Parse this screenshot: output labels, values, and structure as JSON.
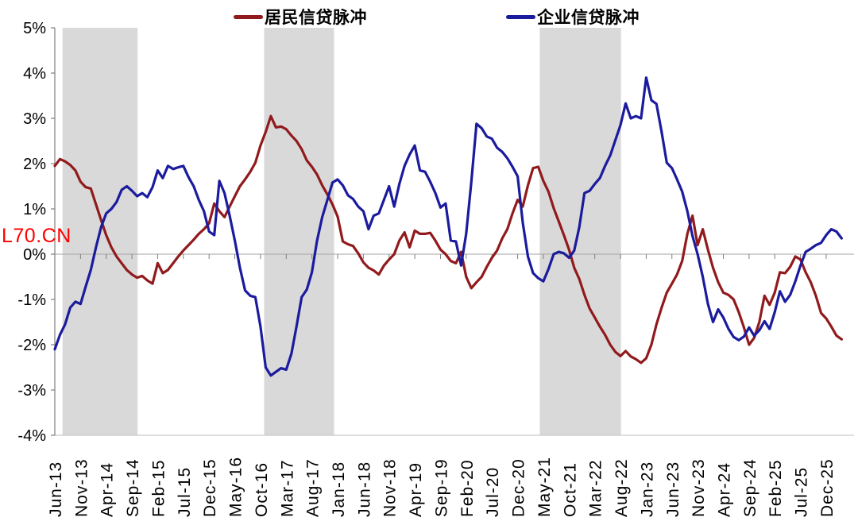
{
  "watermark": {
    "text": "L70.CN",
    "color": "#ff0000"
  },
  "legend": {
    "items": [
      {
        "label": "居民信贷脉冲",
        "color": "#911a1d"
      },
      {
        "label": "企业信贷脉冲",
        "color": "#1b1b9e"
      }
    ]
  },
  "chart_data": {
    "type": "line",
    "unit": "%",
    "ylim": [
      -4,
      5
    ],
    "y_tick_labels": [
      "5%",
      "4%",
      "3%",
      "2%",
      "1%",
      "0%",
      "-1%",
      "-2%",
      "-3%",
      "-4%"
    ],
    "x_tick_labels": [
      "Jun-13",
      "Nov-13",
      "Apr-14",
      "Sep-14",
      "Feb-15",
      "Jul-15",
      "Dec-15",
      "May-16",
      "Oct-16",
      "Mar-17",
      "Aug-17",
      "Jan-18",
      "Jun-18",
      "Nov-18",
      "Apr-19",
      "Sep-19",
      "Feb-20",
      "Jul-20",
      "Dec-20",
      "May-21",
      "Oct-21",
      "Mar-22",
      "Aug-22",
      "Jan-23",
      "Jun-23",
      "Nov-23",
      "Apr-24",
      "Sep-24",
      "Feb-25",
      "Jul-25",
      "Dec-25"
    ],
    "x_tick_step_months": 5,
    "x_start_month": "Jun-13",
    "grid": "zero-line-only",
    "legend_position": "top",
    "band_color": "#d9d9d9",
    "shaded_bands_months": [
      [
        1.5,
        16.1
      ],
      [
        40.7,
        54.3
      ],
      [
        94.3,
        110.1
      ]
    ],
    "series": [
      {
        "name": "居民信贷脉冲",
        "color": "#911a1d",
        "values": [
          1.95,
          2.1,
          2.05,
          1.97,
          1.85,
          1.6,
          1.48,
          1.45,
          1.1,
          0.75,
          0.42,
          0.15,
          -0.05,
          -0.2,
          -0.35,
          -0.45,
          -0.52,
          -0.48,
          -0.58,
          -0.65,
          -0.2,
          -0.42,
          -0.35,
          -0.2,
          -0.05,
          0.08,
          0.2,
          0.32,
          0.45,
          0.55,
          0.68,
          1.12,
          0.95,
          0.82,
          1.05,
          1.28,
          1.5,
          1.65,
          1.82,
          2.02,
          2.4,
          2.7,
          3.05,
          2.8,
          2.82,
          2.76,
          2.62,
          2.5,
          2.32,
          2.07,
          1.93,
          1.76,
          1.52,
          1.32,
          1.1,
          0.83,
          0.28,
          0.22,
          0.18,
          0.02,
          -0.18,
          -0.3,
          -0.36,
          -0.45,
          -0.25,
          -0.12,
          0.0,
          0.3,
          0.48,
          0.15,
          0.52,
          0.45,
          0.45,
          0.47,
          0.3,
          0.1,
          0.0,
          -0.15,
          -0.2,
          0.05,
          -0.5,
          -0.75,
          -0.62,
          -0.5,
          -0.28,
          -0.08,
          0.08,
          0.35,
          0.55,
          0.9,
          1.2,
          1.05,
          1.52,
          1.9,
          1.93,
          1.62,
          1.38,
          1.02,
          0.72,
          0.42,
          0.1,
          -0.3,
          -0.55,
          -0.9,
          -1.2,
          -1.4,
          -1.6,
          -1.78,
          -2.0,
          -2.16,
          -2.25,
          -2.14,
          -2.26,
          -2.32,
          -2.4,
          -2.3,
          -2.0,
          -1.55,
          -1.18,
          -0.85,
          -0.65,
          -0.45,
          -0.15,
          0.45,
          0.85,
          0.2,
          0.55,
          0.1,
          -0.3,
          -0.62,
          -0.85,
          -0.9,
          -1.0,
          -1.28,
          -1.62,
          -2.0,
          -1.85,
          -1.5,
          -0.92,
          -1.12,
          -0.85,
          -0.4,
          -0.42,
          -0.28,
          -0.05,
          -0.12,
          -0.4,
          -0.62,
          -0.92,
          -1.3,
          -1.42,
          -1.6,
          -1.8,
          -1.88
        ]
      },
      {
        "name": "企业信贷脉冲",
        "color": "#1b1b9e",
        "values": [
          -2.1,
          -1.78,
          -1.55,
          -1.18,
          -1.05,
          -1.1,
          -0.72,
          -0.35,
          0.15,
          0.6,
          0.9,
          1.0,
          1.15,
          1.42,
          1.5,
          1.4,
          1.28,
          1.35,
          1.26,
          1.48,
          1.85,
          1.68,
          1.95,
          1.88,
          1.92,
          1.95,
          1.7,
          1.5,
          1.2,
          0.95,
          0.5,
          0.42,
          1.62,
          1.35,
          0.85,
          0.3,
          -0.3,
          -0.8,
          -0.92,
          -0.95,
          -1.6,
          -2.5,
          -2.68,
          -2.6,
          -2.52,
          -2.55,
          -2.2,
          -1.6,
          -0.95,
          -0.78,
          -0.4,
          0.3,
          0.82,
          1.2,
          1.58,
          1.65,
          1.52,
          1.3,
          1.22,
          1.05,
          0.95,
          0.55,
          0.85,
          0.9,
          1.2,
          1.5,
          1.05,
          1.55,
          1.95,
          2.2,
          2.4,
          1.85,
          1.82,
          1.6,
          1.35,
          1.03,
          1.12,
          0.3,
          0.28,
          -0.25,
          0.45,
          1.6,
          2.88,
          2.78,
          2.6,
          2.55,
          2.35,
          2.26,
          2.12,
          1.93,
          1.72,
          0.7,
          -0.05,
          -0.42,
          -0.53,
          -0.6,
          -0.33,
          0.0,
          0.05,
          0.02,
          -0.08,
          0.08,
          0.6,
          1.35,
          1.4,
          1.55,
          1.68,
          1.95,
          2.18,
          2.52,
          2.85,
          3.33,
          3.0,
          3.05,
          3.0,
          3.9,
          3.4,
          3.32,
          2.7,
          2.02,
          1.9,
          1.65,
          1.38,
          0.95,
          0.4,
          0.0,
          -0.5,
          -1.1,
          -1.5,
          -1.22,
          -1.4,
          -1.65,
          -1.83,
          -1.9,
          -1.82,
          -1.62,
          -1.8,
          -1.68,
          -1.48,
          -1.65,
          -1.28,
          -0.82,
          -1.05,
          -0.9,
          -0.6,
          -0.25,
          0.05,
          0.12,
          0.2,
          0.25,
          0.42,
          0.55,
          0.5,
          0.35
        ]
      }
    ]
  }
}
